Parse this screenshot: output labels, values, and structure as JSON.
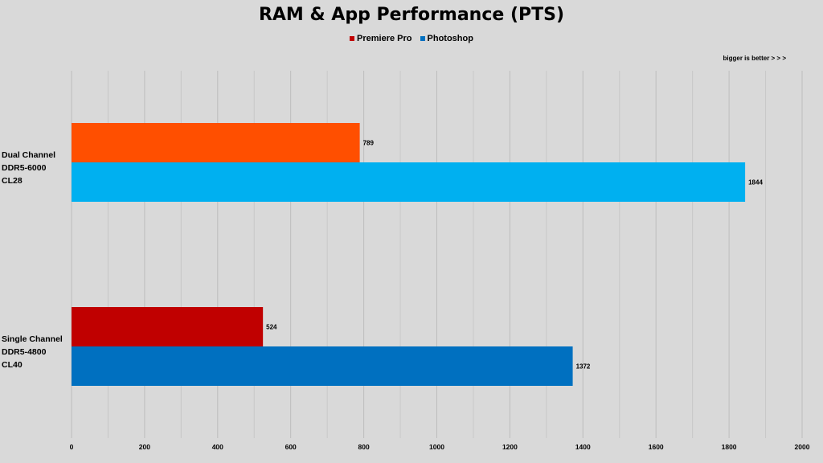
{
  "chart_data": {
    "type": "bar",
    "orientation": "horizontal",
    "title": "RAM & App Performance (PTS)",
    "note": "bigger is better  >  >  >",
    "legend_position": "top",
    "xlim": [
      0,
      2000
    ],
    "xticks": [
      0,
      200,
      400,
      600,
      800,
      1000,
      1200,
      1400,
      1600,
      1800,
      2000
    ],
    "minor_gridlines": true,
    "categories": [
      {
        "line1": "Dual Channel",
        "line2": "DDR5-6000 CL28"
      },
      {
        "line1": "Single Channel",
        "line2": "DDR5-4800 CL40"
      }
    ],
    "series": [
      {
        "name": "Premiere Pro",
        "legend_color": "#c00000",
        "values": [
          789,
          524
        ],
        "colors": [
          "#ff4f00",
          "#c00000"
        ]
      },
      {
        "name": "Photoshop",
        "legend_color": "#0070c0",
        "values": [
          1844,
          1372
        ],
        "colors": [
          "#00b0f0",
          "#0070c0"
        ]
      }
    ]
  }
}
